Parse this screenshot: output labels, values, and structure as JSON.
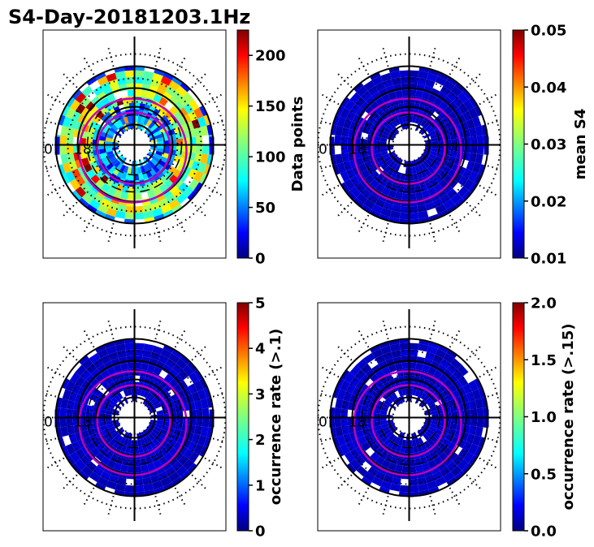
{
  "title": "S4-Day-20181203.1Hz",
  "colors": {
    "frame": "#000000",
    "contour": "#c000c0",
    "jet": [
      "#00007f",
      "#0000ff",
      "#007fff",
      "#00ffff",
      "#7fff7f",
      "#ffff00",
      "#ff7f00",
      "#ff0000",
      "#7f0000"
    ]
  },
  "chart_data": [
    {
      "type": "heatmap",
      "projection": "polar",
      "panel": "top-left",
      "quantity": "Data points",
      "colorbar": {
        "label": "Data points",
        "ticks": [
          "0",
          "50",
          "100",
          "150",
          "200"
        ],
        "tick_values": [
          0,
          50,
          100,
          150,
          200
        ],
        "range": [
          0,
          225
        ]
      },
      "data_profile": "high-count",
      "mlt_label": "0",
      "mlt_label_2": "18"
    },
    {
      "type": "heatmap",
      "projection": "polar",
      "panel": "top-right",
      "quantity": "mean S4",
      "colorbar": {
        "label": "mean S4",
        "ticks": [
          "0.01",
          "0.02",
          "0.03",
          "0.04",
          "0.05"
        ],
        "tick_values": [
          0.01,
          0.02,
          0.03,
          0.04,
          0.05
        ],
        "range": [
          0.01,
          0.05
        ]
      },
      "data_profile": "low",
      "mlt_label": "0",
      "mlt_label_2": "18"
    },
    {
      "type": "heatmap",
      "projection": "polar",
      "panel": "bottom-left",
      "quantity": "occurrence rate (>.1)",
      "colorbar": {
        "label": "occurrence rate (>.1)",
        "ticks": [
          "0",
          "1",
          "2",
          "3",
          "4",
          "5"
        ],
        "tick_values": [
          0,
          1,
          2,
          3,
          4,
          5
        ],
        "range": [
          0,
          5
        ]
      },
      "data_profile": "low",
      "mlt_label": "0",
      "mlt_label_2": "18"
    },
    {
      "type": "heatmap",
      "projection": "polar",
      "panel": "bottom-right",
      "quantity": "occurrence rate (>.15)",
      "colorbar": {
        "label": "occurrence rate (>.15)",
        "ticks": [
          "0.0",
          "0.5",
          "1.0",
          "1.5",
          "2.0"
        ],
        "tick_values": [
          0.0,
          0.5,
          1.0,
          1.5,
          2.0
        ],
        "range": [
          0.0,
          2.0
        ]
      },
      "data_profile": "low-with-spot",
      "mlt_label": "0",
      "mlt_label_2": "18"
    }
  ]
}
